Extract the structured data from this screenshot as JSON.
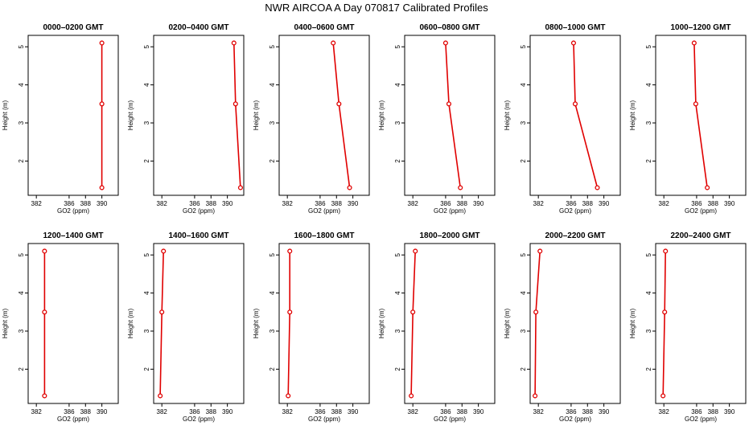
{
  "title": "NWR AIRCOA A  Day 070817  Calibrated Profiles",
  "colors": {
    "series": "#e00000",
    "axis": "#000000",
    "background": "#ffffff"
  },
  "chart_data": {
    "type": "line",
    "xlabel": "GO2 (ppm)",
    "ylabel": "Height (m)",
    "xlim": [
      381,
      392
    ],
    "ylim": [
      1.1,
      5.3
    ],
    "xticks": [
      382,
      386,
      388,
      390
    ],
    "xtick_labels": [
      "382",
      "386",
      "388",
      "390"
    ],
    "yticks": [
      2,
      3,
      4,
      5
    ],
    "ytick_labels": [
      "2",
      "3",
      "4",
      "5"
    ],
    "grid": false,
    "heights": [
      5.1,
      3.5,
      1.3
    ],
    "panels": [
      {
        "title": "0000–0200 GMT",
        "values": [
          390.0,
          390.0,
          390.0
        ]
      },
      {
        "title": "0200–0400 GMT",
        "values": [
          390.8,
          391.0,
          391.6
        ]
      },
      {
        "title": "0400–0600 GMT",
        "values": [
          387.6,
          388.3,
          389.6
        ]
      },
      {
        "title": "0600–0800 GMT",
        "values": [
          386.0,
          386.4,
          387.8
        ]
      },
      {
        "title": "0800–1000 GMT",
        "values": [
          386.3,
          386.5,
          389.2
        ]
      },
      {
        "title": "1000–1200 GMT",
        "values": [
          385.7,
          385.9,
          387.3
        ]
      },
      {
        "title": "1200–1400 GMT",
        "values": [
          383.0,
          383.0,
          383.0
        ]
      },
      {
        "title": "1400–1600 GMT",
        "values": [
          382.2,
          382.0,
          381.8
        ]
      },
      {
        "title": "1600–1800 GMT",
        "values": [
          382.3,
          382.3,
          382.1
        ]
      },
      {
        "title": "1800–2000 GMT",
        "values": [
          382.3,
          382.0,
          381.8
        ]
      },
      {
        "title": "2000–2200 GMT",
        "values": [
          382.2,
          381.7,
          381.6
        ]
      },
      {
        "title": "2200–2400 GMT",
        "values": [
          382.2,
          382.1,
          381.9
        ]
      }
    ]
  }
}
